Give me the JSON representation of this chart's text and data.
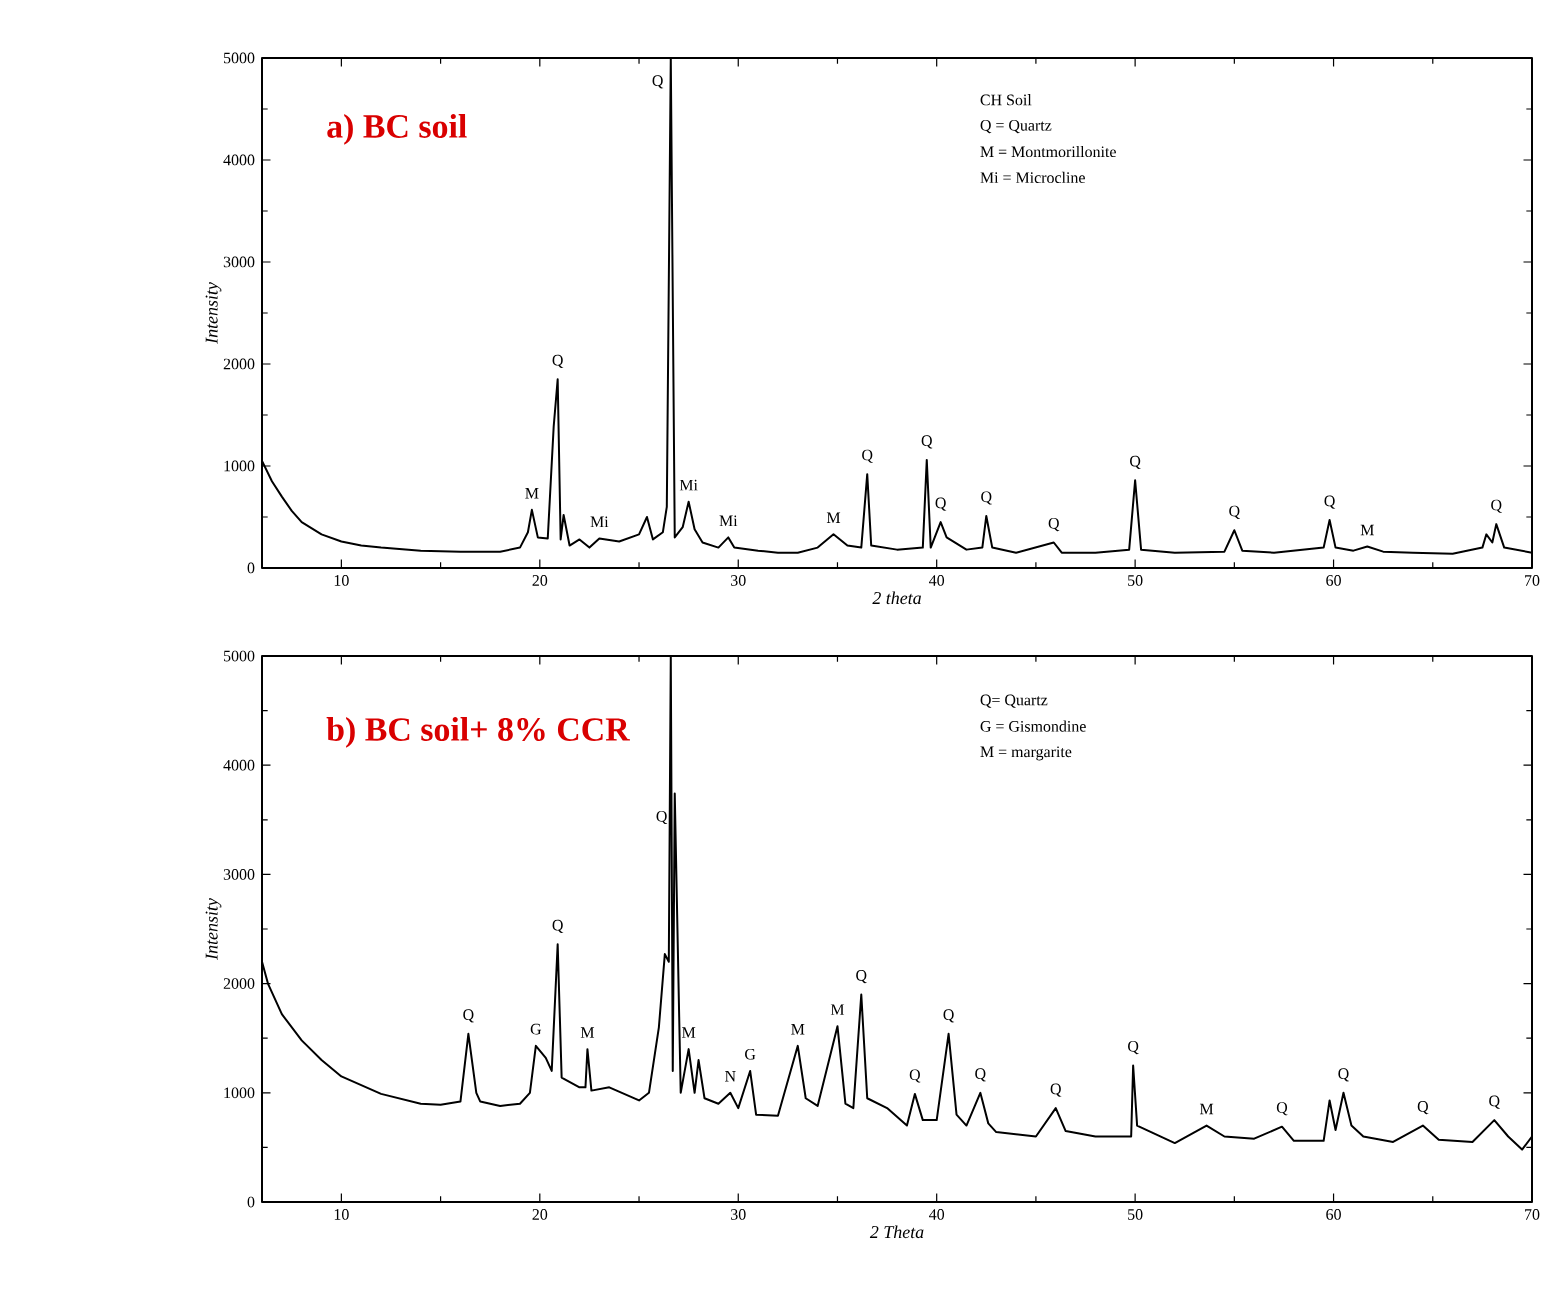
{
  "chart_data": [
    {
      "type": "line",
      "title": "a) BC soil",
      "xlabel": "2 theta",
      "ylabel": "Intensity",
      "xlim": [
        6,
        70
      ],
      "ylim": [
        0,
        5000
      ],
      "xticks": [
        10,
        20,
        30,
        40,
        50,
        60,
        70
      ],
      "yticks": [
        0,
        1000,
        2000,
        3000,
        4000,
        5000
      ],
      "line_style": "solid",
      "series": [
        {
          "color": "#000000",
          "x": [
            6,
            6.5,
            7,
            7.5,
            8,
            9,
            10,
            11,
            12,
            14,
            16,
            18,
            19,
            19.4,
            19.6,
            19.9,
            20.4,
            20.7,
            20.9,
            21.05,
            21.2,
            21.5,
            22,
            22.5,
            23,
            24,
            25,
            25.4,
            25.7,
            26.2,
            26.4,
            26.6,
            26.8,
            27.2,
            27.5,
            27.8,
            28.2,
            29,
            29.5,
            29.8,
            31,
            32,
            33,
            34,
            34.8,
            35.5,
            36.2,
            36.5,
            36.7,
            38,
            39.3,
            39.5,
            39.7,
            40.2,
            40.5,
            41.5,
            42.3,
            42.5,
            42.8,
            44,
            45.9,
            46.3,
            48,
            49.7,
            50,
            50.3,
            52,
            54.5,
            55,
            55.4,
            57,
            59.5,
            59.8,
            60.1,
            61,
            61.7,
            62.5,
            64,
            66,
            67.5,
            67.7,
            68,
            68.2,
            68.6,
            70
          ],
          "values": [
            1050,
            850,
            700,
            560,
            450,
            330,
            260,
            220,
            200,
            170,
            160,
            160,
            200,
            350,
            570,
            300,
            290,
            1390,
            1850,
            280,
            520,
            220,
            280,
            200,
            290,
            260,
            330,
            500,
            280,
            350,
            600,
            5000,
            300,
            400,
            650,
            380,
            250,
            200,
            300,
            200,
            170,
            150,
            150,
            200,
            330,
            220,
            200,
            920,
            220,
            180,
            200,
            1060,
            200,
            450,
            300,
            180,
            200,
            510,
            200,
            150,
            250,
            150,
            150,
            180,
            860,
            180,
            150,
            160,
            370,
            170,
            150,
            200,
            470,
            200,
            170,
            210,
            160,
            150,
            140,
            200,
            330,
            250,
            430,
            200,
            150
          ]
        }
      ],
      "annotations": [
        "CH Soil",
        "Q  = Quartz",
        "M  = Montmorillonite",
        "Mi = Microcline",
        {
          "text": "Q",
          "x": 26.6,
          "y": 5000
        },
        {
          "text": "M",
          "x": 19.6,
          "y": 570
        },
        {
          "text": "Q",
          "x": 20.9,
          "y": 1850
        },
        {
          "text": "Mi",
          "x": 23,
          "y": 290
        },
        {
          "text": "Mi",
          "x": 27.5,
          "y": 650
        },
        {
          "text": "Mi",
          "x": 29.5,
          "y": 300
        },
        {
          "text": "M",
          "x": 34.8,
          "y": 330
        },
        {
          "text": "Q",
          "x": 36.5,
          "y": 920
        },
        {
          "text": "Q",
          "x": 39.5,
          "y": 1060
        },
        {
          "text": "Q",
          "x": 40.2,
          "y": 450
        },
        {
          "text": "Q",
          "x": 42.5,
          "y": 510
        },
        {
          "text": "Q",
          "x": 45.9,
          "y": 250
        },
        {
          "text": "Q",
          "x": 50,
          "y": 860
        },
        {
          "text": "Q",
          "x": 55,
          "y": 370
        },
        {
          "text": "Q",
          "x": 59.8,
          "y": 470
        },
        {
          "text": "M",
          "x": 61.7,
          "y": 210
        },
        {
          "text": "Q",
          "x": 68.2,
          "y": 430
        }
      ]
    },
    {
      "type": "line",
      "title": "b) BC soil+ 8% CCR",
      "xlabel": "2 Theta",
      "ylabel": "Intensity",
      "xlim": [
        6,
        70
      ],
      "ylim": [
        0,
        5000
      ],
      "xticks": [
        10,
        20,
        30,
        40,
        50,
        60,
        70
      ],
      "yticks": [
        0,
        1000,
        2000,
        3000,
        4000,
        5000
      ],
      "line_style": "solid",
      "series": [
        {
          "color": "#000000",
          "x": [
            6,
            6.3,
            7,
            8,
            9,
            10,
            12,
            14,
            15,
            16,
            16.4,
            16.8,
            17,
            18,
            19,
            19.5,
            19.8,
            20.3,
            20.6,
            20.9,
            21.1,
            22,
            22.3,
            22.4,
            22.6,
            23.5,
            25,
            25.5,
            26,
            26.3,
            26.5,
            26.6,
            26.7,
            26.8,
            27.1,
            27.5,
            27.8,
            28,
            28.3,
            29,
            29.6,
            30,
            30.6,
            30.9,
            32,
            33,
            33.4,
            34,
            35,
            35.4,
            35.8,
            36.2,
            36.5,
            37.5,
            38.5,
            38.9,
            39.3,
            40,
            40.6,
            41,
            41.5,
            42.2,
            42.6,
            43,
            45,
            46,
            46.5,
            48,
            49.8,
            49.9,
            50.1,
            52,
            53.6,
            54.5,
            56,
            57.4,
            58,
            59.5,
            59.8,
            60.1,
            60.5,
            60.9,
            61.5,
            63,
            64.5,
            65.3,
            67,
            68.1,
            68.8,
            69.5,
            70
          ],
          "values": [
            2200,
            2000,
            1720,
            1480,
            1300,
            1150,
            990,
            900,
            890,
            920,
            1540,
            1000,
            920,
            880,
            900,
            1000,
            1430,
            1320,
            1200,
            2360,
            1140,
            1050,
            1050,
            1400,
            1020,
            1050,
            930,
            1000,
            1600,
            2270,
            2200,
            5000,
            1200,
            3740,
            1000,
            1400,
            1000,
            1300,
            950,
            900,
            1000,
            860,
            1200,
            800,
            790,
            1430,
            950,
            880,
            1610,
            900,
            860,
            1900,
            950,
            860,
            700,
            990,
            750,
            750,
            1540,
            800,
            700,
            1000,
            720,
            640,
            600,
            860,
            650,
            600,
            600,
            1250,
            700,
            540,
            700,
            600,
            580,
            690,
            560,
            560,
            930,
            660,
            1000,
            700,
            600,
            550,
            700,
            570,
            550,
            750,
            600,
            480,
            600
          ]
        }
      ],
      "annotations": [
        "Q= Quartz",
        "G = Gismondine",
        "M = margarite",
        {
          "text": "Q",
          "x": 16.4,
          "y": 1540
        },
        {
          "text": "G",
          "x": 19.8,
          "y": 1430
        },
        {
          "text": "Q",
          "x": 20.9,
          "y": 2360
        },
        {
          "text": "M",
          "x": 22.4,
          "y": 1400
        },
        {
          "text": "Q",
          "x": 26.8,
          "y": 3740
        },
        {
          "text": "M",
          "x": 27.5,
          "y": 1400
        },
        {
          "text": "N",
          "x": 29.6,
          "y": 1000
        },
        {
          "text": "G",
          "x": 30.6,
          "y": 1200
        },
        {
          "text": "M",
          "x": 33,
          "y": 1430
        },
        {
          "text": "M",
          "x": 35,
          "y": 1610
        },
        {
          "text": "Q",
          "x": 36.2,
          "y": 1900
        },
        {
          "text": "Q",
          "x": 38.9,
          "y": 990
        },
        {
          "text": "Q",
          "x": 40.6,
          "y": 1540
        },
        {
          "text": "Q",
          "x": 42.2,
          "y": 1000
        },
        {
          "text": "Q",
          "x": 46,
          "y": 860
        },
        {
          "text": "Q",
          "x": 49.9,
          "y": 1250
        },
        {
          "text": "M",
          "x": 53.6,
          "y": 700
        },
        {
          "text": "Q",
          "x": 57.4,
          "y": 690
        },
        {
          "text": "Q",
          "x": 60.5,
          "y": 1000
        },
        {
          "text": "Q",
          "x": 64.5,
          "y": 700
        },
        {
          "text": "Q",
          "x": 68.1,
          "y": 750
        }
      ]
    }
  ]
}
